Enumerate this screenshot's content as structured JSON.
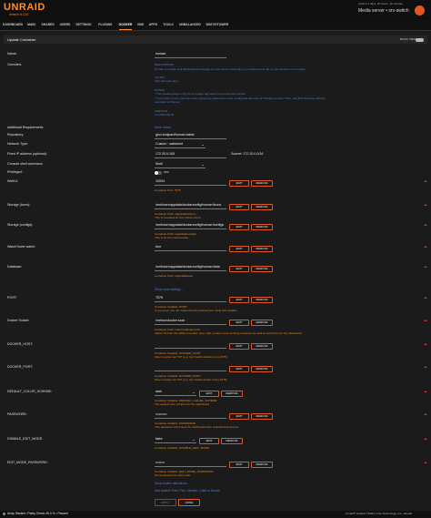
{
  "header": {
    "logo": "UNRAID",
    "version": "Version: 6.12.6",
    "uptime": "Uptime 2 days, 20 hours, 19 minutes",
    "server": "Media server • srv-switch"
  },
  "nav": [
    "DASHBOARD",
    "MAIN",
    "SHARES",
    "USERS",
    "SETTINGS",
    "PLUGINS",
    "DOCKER",
    "VMS",
    "APPS",
    "TOOLS",
    "UNBALANCED",
    "WATCHTOWER"
  ],
  "page": {
    "title": "Update Container",
    "view_toggle": "BASIC VIEW"
  },
  "fields": [
    {
      "label": "Name:",
      "value": "homarr",
      "kind": "input"
    },
    {
      "label": "Overview:",
      "kind": "text",
      "lines": [
        "DESCRIPTION",
        "Homarr is a sleek and lightweight homepage for your server, that helps you easily access all of your services in one place.",
        "",
        "Info link:",
        "https://homarr.dev/",
        "",
        "NOTES",
        "* The installed flag is only for the image tag 'latest' recommended version",
        "* If you want to use your own icons (png/svg), place them in the configured directory of 'Storage (icons)'. Then, use their filename with the",
        "extension in Homarr.",
        "",
        "VERSION",
        "1.0 2023-09-18"
      ]
    },
    {
      "label": "Additional Requirements:",
      "value": "None Listed",
      "kind": "plain"
    },
    {
      "label": "Repository:",
      "value": "ghcr.io/ajnart/homarr:latest",
      "kind": "input"
    },
    {
      "label": "Network Type:",
      "value": "Custom : sabdnest",
      "kind": "select"
    },
    {
      "label": "Fixed IP address (optional):",
      "value": "172.20.0.105",
      "kind": "input",
      "extra": "Subnet: 172.20.0.0/16"
    },
    {
      "label": "Console shell command:",
      "value": "Shell",
      "kind": "select"
    },
    {
      "label": "Privileged:",
      "value": "OFF",
      "kind": "toggle"
    },
    {
      "label": "WebUI:",
      "value": "10004",
      "kind": "input",
      "buttons": true,
      "note": [
        "Container Port: 7575"
      ]
    },
    {
      "label": "Storage (icons):",
      "value": "/mnt/user/appdata/dockerconfig/homarr/icons",
      "kind": "input",
      "buttons": true,
      "note": [
        "Container Path: /app/public/icons",
        "This is mounted for the custom icons."
      ]
    },
    {
      "label": "Storage (configs):",
      "value": "/mnt/user/appdata/dockerconfig/homarr/configs",
      "kind": "input",
      "buttons": true,
      "note": [
        "Container Path: /app/data/configs",
        "This is for the internal data."
      ]
    },
    {
      "label": "WatchTower watch:",
      "value": "true",
      "kind": "input",
      "buttons": true,
      "note": []
    },
    {
      "label": "Database:",
      "value": "/mnt/user/appdata/dockerconfig/homarr/data",
      "kind": "input",
      "buttons": true,
      "note": [
        "Container Path: /app/database"
      ]
    },
    {
      "label": "PORT:",
      "value": "7575",
      "kind": "input",
      "buttons": true,
      "note": [
        "Container Variable: PORT",
        "If you need, you can customize the internal port using this variable"
      ]
    },
    {
      "label": "Docker Socket:",
      "value": "/var/run/docker.sock",
      "kind": "input",
      "buttons": true,
      "note": [
        "Container Path: /var/run/docker.sock",
        "Allows Homarr the ability to restart, stop, start, rename your running containers as well as send them to the dashboard"
      ]
    },
    {
      "label": "DOCKER_HOST:",
      "kind": "input",
      "buttons": true,
      "note": [
        "Container Variable: DOCKER_HOST",
        "Mount socket via TCP (e.g. tcp://mailz-docker-proxy:2375)"
      ]
    },
    {
      "label": "DOCKER_PORT:",
      "kind": "input",
      "buttons": true,
      "note": [
        "Container Variable: DOCKER_PORT",
        "Mount socket via TCP (e.g. tcp://mailz-docker-proxy:2375)"
      ]
    },
    {
      "label": "DEFAULT_COLOR_SCHEME:",
      "value": "dark",
      "kind": "select",
      "buttons": true,
      "note": [
        "Container Variable: DEFAULT_COLOR_SCHEME",
        "The default color scheme for the dashboard"
      ]
    },
    {
      "label": "PASSWORD:",
      "value": "••••••••••",
      "kind": "input",
      "buttons": true,
      "note": [
        "Container Variable: PASSWORD",
        "This password will protect the dashboard from unauthorized access."
      ]
    },
    {
      "label": "DISABLE_EDIT_MODE:",
      "value": "false",
      "kind": "select",
      "buttons": true,
      "note": [
        "Container Variable: DISABLE_EDIT_MODE"
      ]
    },
    {
      "label": "EDIT_MODE_PASSWORD:",
      "value": "••••••••",
      "kind": "input",
      "buttons": true,
      "note": [
        "Container Variable: EDIT_MODE_PASSWORD",
        "Set a password to edit mode"
      ]
    }
  ],
  "row_buttons": {
    "edit": "EDIT",
    "remove": "REMOVE"
  },
  "links": {
    "more_settings": "Show more settings ...",
    "allocations": "Show docker allocations ...",
    "add_another": "Add another Path, Port, Variable, Label or Device"
  },
  "buttons": {
    "apply": "APPLY",
    "done": "DONE"
  },
  "footer": {
    "status": "Array Started • Parity-Check 45.3 % • Paused",
    "copyright": "Unraid® webGui ©2023, Lime Technology, Inc. manual"
  }
}
